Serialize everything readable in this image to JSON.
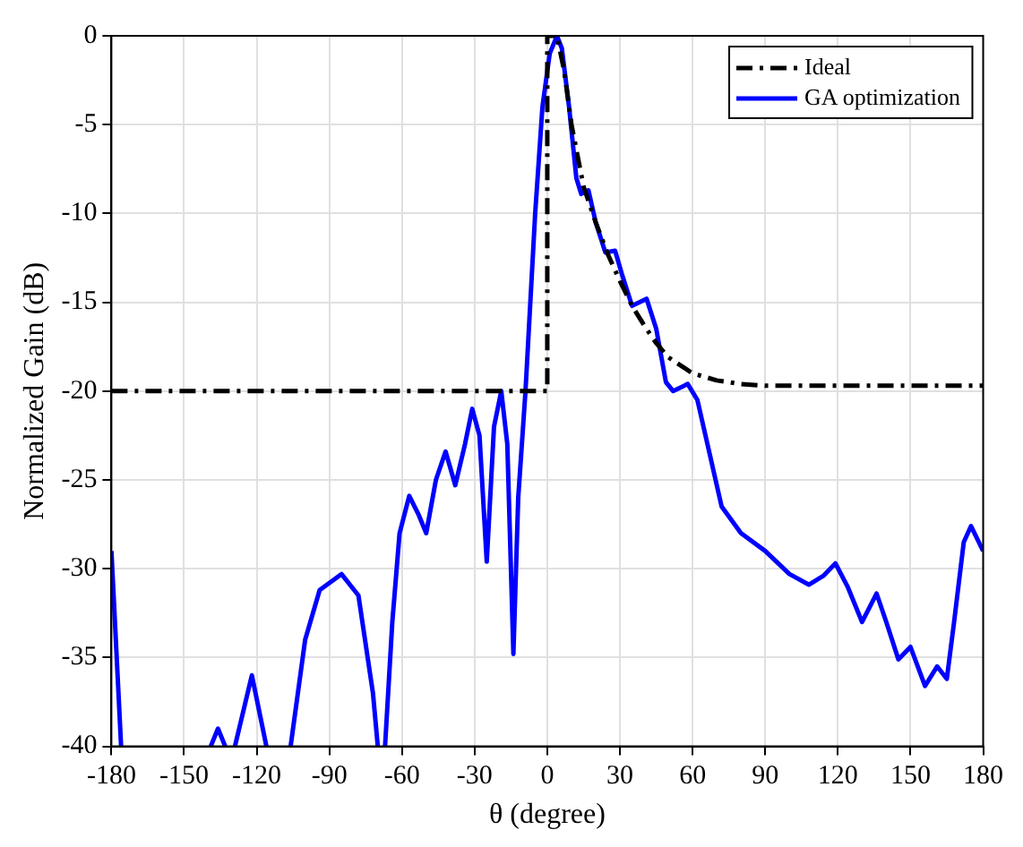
{
  "chart_data": {
    "type": "line",
    "xlabel": "θ (degree)",
    "ylabel": "Normalized Gain (dB)",
    "xlim": [
      -180,
      180
    ],
    "xticks": [
      -180,
      -150,
      -120,
      -90,
      -60,
      -30,
      0,
      30,
      60,
      90,
      120,
      150,
      180
    ],
    "ylim": [
      -40,
      0
    ],
    "yticks": [
      -40,
      -35,
      -30,
      -25,
      -20,
      -15,
      -10,
      -5,
      0
    ],
    "grid": true,
    "legend": "top right",
    "marker": "none",
    "series": [
      {
        "name": "Ideal",
        "color": "#000000",
        "line_style": "dashed",
        "x": [
          -180,
          0,
          0,
          4,
          7,
          10,
          15,
          20,
          25,
          30,
          35,
          40,
          45,
          50,
          60,
          70,
          80,
          90,
          180
        ],
        "values": [
          -20,
          -20,
          0,
          0,
          -2,
          -5,
          -8.5,
          -10.5,
          -12.3,
          -13.8,
          -15.2,
          -16.3,
          -17.3,
          -18.1,
          -19,
          -19.4,
          -19.6,
          -19.7,
          -19.7
        ]
      },
      {
        "name": "GA optimization",
        "color": "#0000ff",
        "line_style": "solid",
        "x": [
          -180,
          -176,
          -160,
          -139,
          -136,
          -133,
          -131,
          -129,
          -122,
          -116,
          -111,
          -106,
          -100,
          -94,
          -85,
          -78,
          -72,
          -70,
          -68,
          -67,
          -64,
          -61,
          -57,
          -53,
          -50,
          -46,
          -42,
          -38,
          -34,
          -31,
          -28,
          -25,
          -22,
          -19,
          -16.5,
          -14,
          -12,
          -9,
          -5,
          -2,
          1,
          4,
          6,
          9,
          12,
          14,
          17,
          20,
          24,
          28,
          31,
          35,
          41,
          45,
          49,
          52,
          58,
          62,
          67,
          72,
          80,
          90,
          100,
          108,
          114,
          119,
          124,
          130,
          136,
          140,
          145,
          150,
          153,
          156,
          161,
          165,
          168,
          172,
          175,
          180
        ],
        "values": [
          -29,
          -40,
          null,
          -40,
          -39,
          -40,
          null,
          -40,
          -36,
          -40,
          null,
          -40,
          -34,
          -31.2,
          -30.3,
          -31.5,
          -37,
          -40,
          null,
          -40,
          -33,
          -28,
          -25.9,
          -27,
          -28,
          -25,
          -23.4,
          -25.3,
          -23,
          -21,
          -22.5,
          -29.6,
          -22,
          -20,
          -23,
          -34.8,
          -26,
          -20,
          -10,
          -4,
          -1,
          0,
          -0.7,
          -4,
          -8,
          -8.9,
          -8.7,
          -10.5,
          -12.2,
          -12.1,
          -13.5,
          -15.2,
          -14.8,
          -16.5,
          -19.5,
          -20,
          -19.6,
          -20.5,
          -23.5,
          -26.5,
          -28,
          -29,
          -30.3,
          -30.9,
          -30.4,
          -29.7,
          -31,
          -33,
          -31.4,
          -33,
          -35.1,
          -34.4,
          -35.5,
          -36.6,
          -35.5,
          -36.2,
          -33,
          -28.5,
          -27.6,
          -29
        ]
      }
    ]
  }
}
